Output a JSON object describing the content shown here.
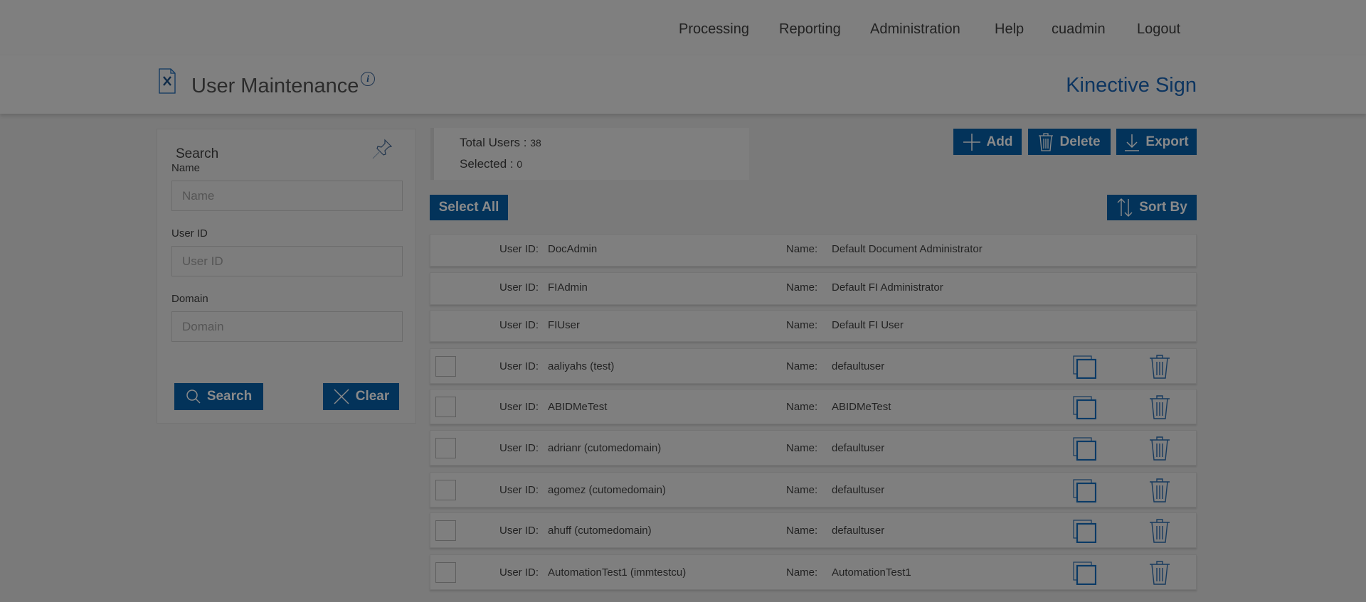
{
  "nav": {
    "items": [
      "Processing",
      "Reporting",
      "Administration",
      "Help",
      "cuadmin",
      "Logout"
    ]
  },
  "header": {
    "title": "User Maintenance",
    "brand": "Kinective Sign"
  },
  "search": {
    "title": "Search",
    "fields": [
      {
        "label": "Name",
        "placeholder": "Name"
      },
      {
        "label": "User ID",
        "placeholder": "User ID"
      },
      {
        "label": "Domain",
        "placeholder": "Domain"
      }
    ],
    "search_label": "Search",
    "clear_label": "Clear"
  },
  "stats": {
    "total_label": "Total Users :",
    "total": "38",
    "selected_label": "Selected :",
    "selected": "0"
  },
  "toolbar": {
    "add": "Add",
    "delete": "Delete",
    "export": "Export",
    "select_all": "Select All",
    "sort_by": "Sort By"
  },
  "labels": {
    "user_id": "User ID:",
    "name": "Name:"
  },
  "users": [
    {
      "id": "DocAdmin",
      "name": "Default Document Administrator",
      "system": true
    },
    {
      "id": "FIAdmin",
      "name": "Default FI Administrator",
      "system": true
    },
    {
      "id": "FIUser",
      "name": "Default FI User",
      "system": true
    },
    {
      "id": "aaliyahs (test)",
      "name": "defaultuser"
    },
    {
      "id": "ABIDMeTest",
      "name": "ABIDMeTest"
    },
    {
      "id": "adrianr (cutomedomain)",
      "name": "defaultuser"
    },
    {
      "id": "agomez (cutomedomain)",
      "name": "defaultuser"
    },
    {
      "id": "ahuff (cutomedomain)",
      "name": "defaultuser"
    },
    {
      "id": "AutomationTest1 (immtestcu)",
      "name": "AutomationTest1"
    }
  ],
  "colors": {
    "accent": "#03335a",
    "brand": "#0d3560"
  }
}
